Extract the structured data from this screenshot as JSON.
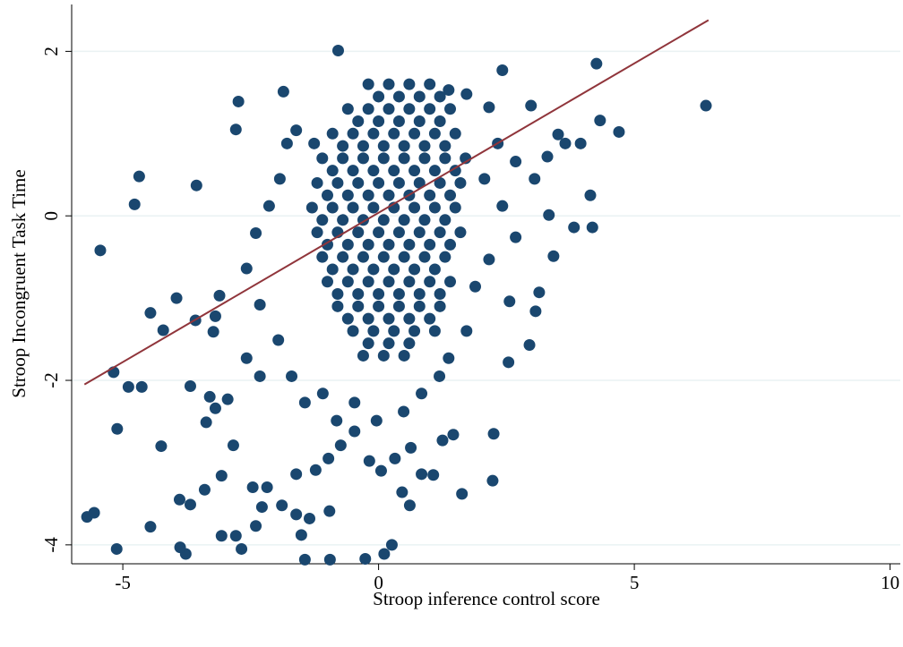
{
  "chart_data": {
    "type": "scatter",
    "xlabel": "Stroop inference control score",
    "ylabel": "Stroop Incongruent Task Time",
    "xlim": [
      -6,
      10.2
    ],
    "ylim": [
      -4.23,
      2.57
    ],
    "xticks": [
      -5,
      0,
      5,
      10
    ],
    "yticks": [
      -4,
      -2,
      0,
      2
    ],
    "grid": true,
    "grid_color": "#eaf2f3",
    "series": [
      {
        "color": "#1a476f",
        "x": [
          -5.44,
          -4.68,
          -4.77,
          -3.56,
          -2.74,
          -2.79,
          -1.86,
          -0.79,
          4.26,
          6.4,
          4.7,
          4.33,
          4.14,
          4.18,
          -5.7,
          -5.56,
          -5.12,
          -3.77,
          -3.88,
          -1.44,
          -0.26,
          -0.95,
          0.11,
          0.26,
          -5.18,
          -4.89,
          -4.63,
          -5.11,
          -4.25,
          -4.46,
          -3.89,
          2.23,
          1.63,
          2.25,
          2.54,
          2.95,
          2.56,
          3.07,
          3.14,
          3.42,
          3.82,
          3.33,
          3.3,
          3.65,
          3.95,
          3.51,
          2.98,
          2.42,
          3.05,
          -4.21,
          -4.46,
          -3.95,
          -3.58,
          -3.19,
          -3.11,
          -3.23,
          -3.3,
          -3.68,
          -2.95,
          -3.19,
          -3.37,
          -2.84,
          -3.07,
          -3.4,
          -3.68,
          -3.07,
          -2.79,
          -2.68,
          -2.4,
          -2.28,
          -2.46,
          -2.18,
          -1.89,
          -1.61,
          -1.51,
          -1.35,
          -0.96,
          -1.61,
          -1.23,
          -0.98,
          -0.74,
          -0.47,
          -0.18,
          0.05,
          0.32,
          0.46,
          0.61,
          0.84,
          1.07,
          1.25,
          1.46,
          0.63,
          -2.58,
          -2.32,
          -1.96,
          -1.7,
          -1.44,
          -2.32,
          -2.58,
          -2.4,
          -2.14,
          -1.93,
          -1.79,
          -1.61,
          -1.26,
          1.37,
          1.72,
          2.16,
          2.33,
          2.68,
          2.07,
          2.42,
          2.68,
          2.16,
          1.89,
          1.72,
          1.37,
          1.19,
          0.84,
          0.49,
          -0.04,
          -0.47,
          -0.82,
          -1.09,
          -0.2,
          0.2,
          0.6,
          1.0,
          0,
          0.4,
          0.8,
          1.2,
          -0.6,
          -0.2,
          0.2,
          0.6,
          1.0,
          1.4,
          -0.4,
          0,
          0.4,
          0.8,
          1.2,
          -0.9,
          -0.5,
          -0.1,
          0.3,
          0.7,
          1.1,
          1.5,
          -0.7,
          -0.3,
          0.1,
          0.5,
          0.9,
          1.3,
          -1.1,
          -0.7,
          -0.3,
          0.1,
          0.5,
          0.9,
          1.3,
          1.7,
          -0.9,
          -0.5,
          -0.1,
          0.3,
          0.7,
          1.1,
          1.5,
          -1.2,
          -0.8,
          -0.4,
          0,
          0.4,
          0.8,
          1.2,
          1.6,
          -1.0,
          -0.6,
          -0.2,
          0.2,
          0.6,
          1.0,
          1.4,
          -1.3,
          -0.9,
          -0.5,
          -0.1,
          0.3,
          0.7,
          1.1,
          1.5,
          -1.1,
          -0.7,
          -0.3,
          0.1,
          0.5,
          0.9,
          1.3,
          -1.2,
          -0.8,
          -0.4,
          0,
          0.4,
          0.8,
          1.2,
          1.6,
          -1.0,
          -0.6,
          -0.2,
          0.2,
          0.6,
          1.0,
          1.4,
          -1.1,
          -0.7,
          -0.3,
          0.1,
          0.5,
          0.9,
          1.3,
          -0.9,
          -0.5,
          -0.1,
          0.3,
          0.7,
          1.1,
          -1.0,
          -0.6,
          -0.2,
          0.2,
          0.6,
          1.0,
          1.4,
          -0.8,
          -0.4,
          0,
          0.4,
          0.8,
          1.2,
          -0.8,
          -0.4,
          0,
          0.4,
          0.8,
          1.2,
          -0.6,
          -0.2,
          0.2,
          0.6,
          1.0,
          -0.5,
          -0.1,
          0.3,
          0.7,
          1.1,
          -0.2,
          0.2,
          0.6,
          -0.3,
          0.1,
          0.5
        ],
        "values": [
          -0.42,
          0.48,
          0.14,
          0.37,
          1.39,
          1.05,
          1.51,
          2.01,
          1.85,
          1.34,
          1.02,
          1.16,
          0.25,
          -0.14,
          -3.66,
          -3.61,
          -4.05,
          -4.11,
          -4.03,
          -4.18,
          -4.17,
          -4.18,
          -4.11,
          -4.0,
          -1.9,
          -2.08,
          -2.08,
          -2.59,
          -2.8,
          -3.78,
          -3.45,
          -3.22,
          -3.38,
          -2.65,
          -1.78,
          -1.57,
          -1.04,
          -1.16,
          -0.93,
          -0.49,
          -0.14,
          0.01,
          0.72,
          0.88,
          0.88,
          0.99,
          1.34,
          1.77,
          0.45,
          -1.39,
          -1.18,
          -1.0,
          -1.27,
          -1.22,
          -0.97,
          -1.41,
          -2.2,
          -2.07,
          -2.23,
          -2.34,
          -2.51,
          -2.79,
          -3.16,
          -3.33,
          -3.51,
          -3.89,
          -3.89,
          -4.05,
          -3.77,
          -3.54,
          -3.3,
          -3.3,
          -3.52,
          -3.63,
          -3.88,
          -3.68,
          -3.59,
          -3.14,
          -3.09,
          -2.95,
          -2.79,
          -2.62,
          -2.98,
          -3.1,
          -2.95,
          -3.36,
          -3.52,
          -3.14,
          -3.15,
          -2.73,
          -2.66,
          -2.82,
          -1.73,
          -1.95,
          -1.51,
          -1.95,
          -2.27,
          -1.08,
          -0.64,
          -0.21,
          0.12,
          0.45,
          0.88,
          1.04,
          0.88,
          1.53,
          1.48,
          1.32,
          0.88,
          0.66,
          0.45,
          0.12,
          -0.26,
          -0.53,
          -0.86,
          -1.4,
          -1.73,
          -1.95,
          -2.16,
          -2.38,
          -2.49,
          -2.27,
          -2.49,
          -2.16,
          1.6,
          1.6,
          1.6,
          1.6,
          1.45,
          1.45,
          1.45,
          1.45,
          1.3,
          1.3,
          1.3,
          1.3,
          1.3,
          1.3,
          1.15,
          1.15,
          1.15,
          1.15,
          1.15,
          1.0,
          1.0,
          1.0,
          1.0,
          1.0,
          1.0,
          1.0,
          0.85,
          0.85,
          0.85,
          0.85,
          0.85,
          0.85,
          0.7,
          0.7,
          0.7,
          0.7,
          0.7,
          0.7,
          0.7,
          0.7,
          0.55,
          0.55,
          0.55,
          0.55,
          0.55,
          0.55,
          0.55,
          0.4,
          0.4,
          0.4,
          0.4,
          0.4,
          0.4,
          0.4,
          0.4,
          0.25,
          0.25,
          0.25,
          0.25,
          0.25,
          0.25,
          0.25,
          0.1,
          0.1,
          0.1,
          0.1,
          0.1,
          0.1,
          0.1,
          0.1,
          -0.05,
          -0.05,
          -0.05,
          -0.05,
          -0.05,
          -0.05,
          -0.05,
          -0.2,
          -0.2,
          -0.2,
          -0.2,
          -0.2,
          -0.2,
          -0.2,
          -0.2,
          -0.35,
          -0.35,
          -0.35,
          -0.35,
          -0.35,
          -0.35,
          -0.35,
          -0.5,
          -0.5,
          -0.5,
          -0.5,
          -0.5,
          -0.5,
          -0.5,
          -0.65,
          -0.65,
          -0.65,
          -0.65,
          -0.65,
          -0.65,
          -0.8,
          -0.8,
          -0.8,
          -0.8,
          -0.8,
          -0.8,
          -0.8,
          -0.95,
          -0.95,
          -0.95,
          -0.95,
          -0.95,
          -0.95,
          -1.1,
          -1.1,
          -1.1,
          -1.1,
          -1.1,
          -1.1,
          -1.25,
          -1.25,
          -1.25,
          -1.25,
          -1.25,
          -1.4,
          -1.4,
          -1.4,
          -1.4,
          -1.4,
          -1.55,
          -1.55,
          -1.55,
          -1.7,
          -1.7,
          -1.7
        ]
      }
    ],
    "fit_line": {
      "color": "#90353b",
      "x": [
        -5.75,
        6.45
      ],
      "values": [
        -2.05,
        2.38
      ]
    }
  }
}
